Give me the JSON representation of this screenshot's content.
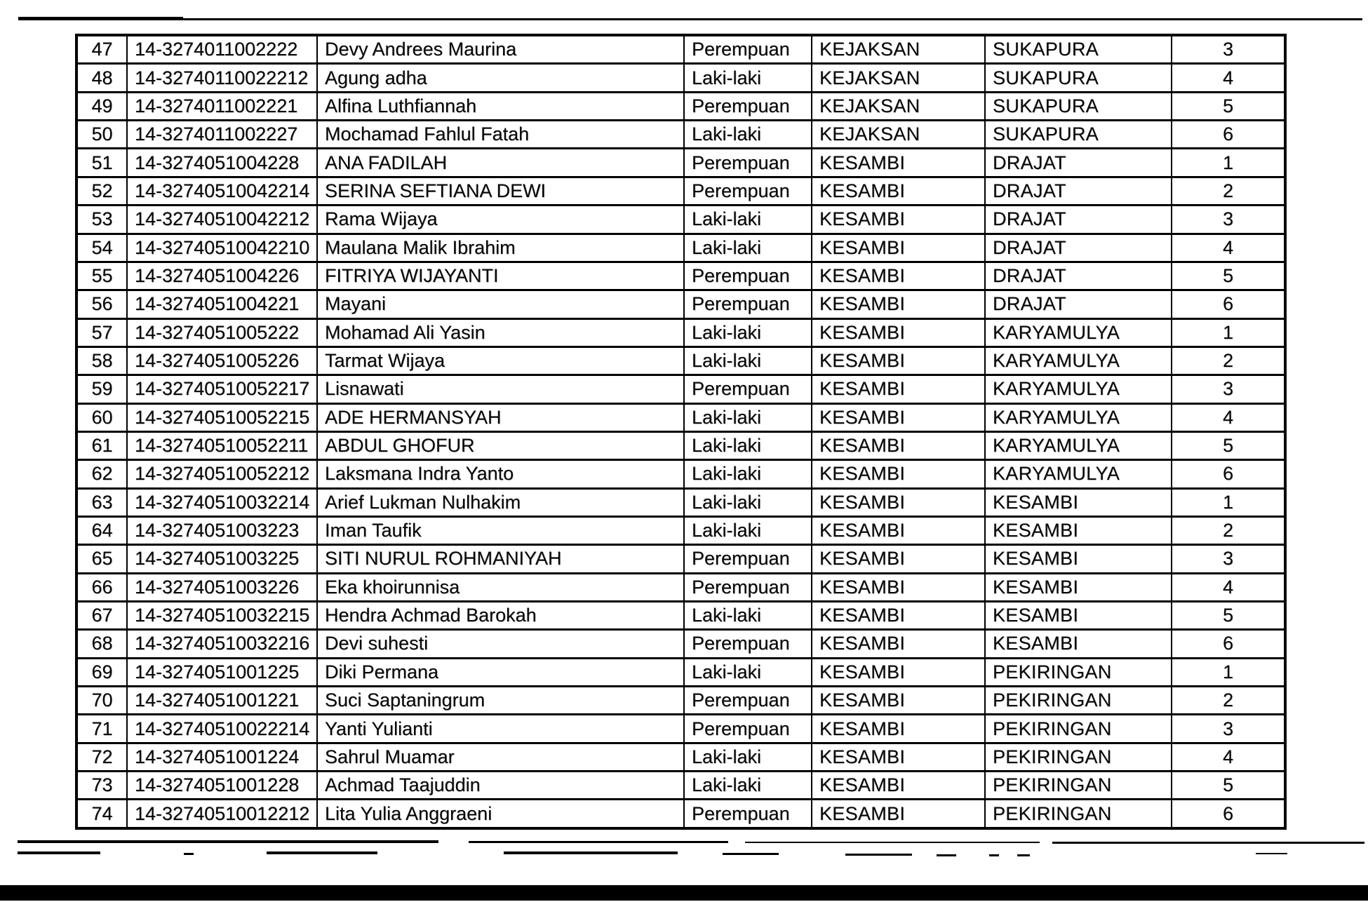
{
  "page": {
    "paper_color": "#ffffff",
    "ink_color": "#0a0a0a"
  },
  "table": {
    "column_keys": [
      "no",
      "id",
      "name",
      "gender",
      "district",
      "village",
      "group"
    ],
    "rows": [
      [
        "47",
        "14-3274011002222",
        "Devy Andrees Maurina",
        "Perempuan",
        "KEJAKSAN",
        "SUKAPURA",
        "3"
      ],
      [
        "48",
        "14-32740110022212",
        "Agung adha",
        "Laki-laki",
        "KEJAKSAN",
        "SUKAPURA",
        "4"
      ],
      [
        "49",
        "14-3274011002221",
        "Alfina Luthfiannah",
        "Perempuan",
        "KEJAKSAN",
        "SUKAPURA",
        "5"
      ],
      [
        "50",
        "14-3274011002227",
        "Mochamad Fahlul Fatah",
        "Laki-laki",
        "KEJAKSAN",
        "SUKAPURA",
        "6"
      ],
      [
        "51",
        "14-3274051004228",
        "ANA FADILAH",
        "Perempuan",
        "KESAMBI",
        "DRAJAT",
        "1"
      ],
      [
        "52",
        "14-32740510042214",
        "SERINA SEFTIANA DEWI",
        "Perempuan",
        "KESAMBI",
        "DRAJAT",
        "2"
      ],
      [
        "53",
        "14-32740510042212",
        "Rama Wijaya",
        "Laki-laki",
        "KESAMBI",
        "DRAJAT",
        "3"
      ],
      [
        "54",
        "14-32740510042210",
        "Maulana Malik Ibrahim",
        "Laki-laki",
        "KESAMBI",
        "DRAJAT",
        "4"
      ],
      [
        "55",
        "14-3274051004226",
        "FITRIYA WIJAYANTI",
        "Perempuan",
        "KESAMBI",
        "DRAJAT",
        "5"
      ],
      [
        "56",
        "14-3274051004221",
        "Mayani",
        "Perempuan",
        "KESAMBI",
        "DRAJAT",
        "6"
      ],
      [
        "57",
        "14-3274051005222",
        "Mohamad Ali Yasin",
        "Laki-laki",
        "KESAMBI",
        "KARYAMULYA",
        "1"
      ],
      [
        "58",
        "14-3274051005226",
        "Tarmat Wijaya",
        "Laki-laki",
        "KESAMBI",
        "KARYAMULYA",
        "2"
      ],
      [
        "59",
        "14-32740510052217",
        "Lisnawati",
        "Perempuan",
        "KESAMBI",
        "KARYAMULYA",
        "3"
      ],
      [
        "60",
        "14-32740510052215",
        "ADE HERMANSYAH",
        "Laki-laki",
        "KESAMBI",
        "KARYAMULYA",
        "4"
      ],
      [
        "61",
        "14-32740510052211",
        "ABDUL GHOFUR",
        "Laki-laki",
        "KESAMBI",
        "KARYAMULYA",
        "5"
      ],
      [
        "62",
        "14-32740510052212",
        "Laksmana Indra Yanto",
        "Laki-laki",
        "KESAMBI",
        "KARYAMULYA",
        "6"
      ],
      [
        "63",
        "14-32740510032214",
        "Arief Lukman Nulhakim",
        "Laki-laki",
        "KESAMBI",
        "KESAMBI",
        "1"
      ],
      [
        "64",
        "14-3274051003223",
        "Iman Taufik",
        "Laki-laki",
        "KESAMBI",
        "KESAMBI",
        "2"
      ],
      [
        "65",
        "14-3274051003225",
        "SITI NURUL ROHMANIYAH",
        "Perempuan",
        "KESAMBI",
        "KESAMBI",
        "3"
      ],
      [
        "66",
        "14-3274051003226",
        "Eka khoirunnisa",
        "Perempuan",
        "KESAMBI",
        "KESAMBI",
        "4"
      ],
      [
        "67",
        "14-32740510032215",
        "Hendra Achmad Barokah",
        "Laki-laki",
        "KESAMBI",
        "KESAMBI",
        "5"
      ],
      [
        "68",
        "14-32740510032216",
        "Devi suhesti",
        "Perempuan",
        "KESAMBI",
        "KESAMBI",
        "6"
      ],
      [
        "69",
        "14-3274051001225",
        "Diki Permana",
        "Laki-laki",
        "KESAMBI",
        "PEKIRINGAN",
        "1"
      ],
      [
        "70",
        "14-3274051001221",
        "Suci Saptaningrum",
        "Perempuan",
        "KESAMBI",
        "PEKIRINGAN",
        "2"
      ],
      [
        "71",
        "14-32740510022214",
        "Yanti Yulianti",
        "Perempuan",
        "KESAMBI",
        "PEKIRINGAN",
        "3"
      ],
      [
        "72",
        "14-3274051001224",
        "Sahrul Muamar",
        "Laki-laki",
        "KESAMBI",
        "PEKIRINGAN",
        "4"
      ],
      [
        "73",
        "14-3274051001228",
        "Achmad Taajuddin",
        "Laki-laki",
        "KESAMBI",
        "PEKIRINGAN",
        "5"
      ],
      [
        "74",
        "14-32740510012212",
        "Lita Yulia Anggraeni",
        "Perempuan",
        "KESAMBI",
        "PEKIRINGAN",
        "6"
      ]
    ]
  }
}
